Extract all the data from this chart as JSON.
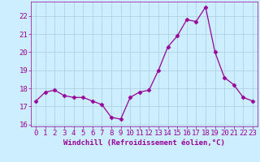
{
  "x": [
    0,
    1,
    2,
    3,
    4,
    5,
    6,
    7,
    8,
    9,
    10,
    11,
    12,
    13,
    14,
    15,
    16,
    17,
    18,
    19,
    20,
    21,
    22,
    23
  ],
  "y": [
    17.3,
    17.8,
    17.9,
    17.6,
    17.5,
    17.5,
    17.3,
    17.1,
    16.4,
    16.3,
    17.5,
    17.8,
    17.9,
    19.0,
    20.3,
    20.9,
    21.8,
    21.7,
    22.5,
    20.0,
    18.6,
    18.2,
    17.5,
    17.3
  ],
  "line_color": "#990099",
  "marker": "D",
  "background_color": "#cceeff",
  "grid_color": "#aaccdd",
  "tick_color": "#990099",
  "xlabel": "Windchill (Refroidissement éolien,°C)",
  "ylim": [
    15.9,
    22.8
  ],
  "yticks": [
    16,
    17,
    18,
    19,
    20,
    21,
    22
  ],
  "xticks": [
    0,
    1,
    2,
    3,
    4,
    5,
    6,
    7,
    8,
    9,
    10,
    11,
    12,
    13,
    14,
    15,
    16,
    17,
    18,
    19,
    20,
    21,
    22,
    23
  ],
  "label_color": "#990099",
  "tick_fontsize": 6.5,
  "xlabel_fontsize": 6.5
}
